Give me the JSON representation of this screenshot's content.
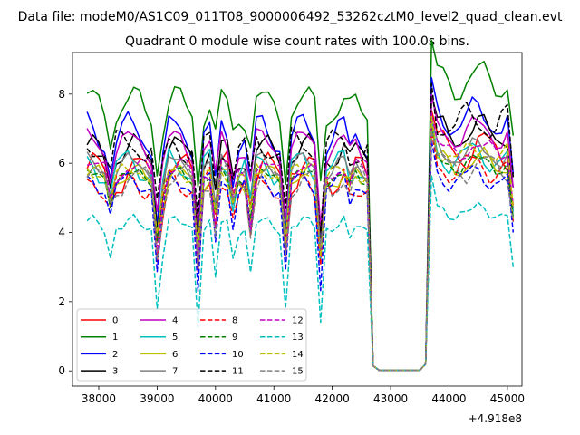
{
  "figure": {
    "suptitle": "Data file: modeM0/AS1C09_011T08_9000006492_53262cztM0_level2_quad_clean.evt",
    "title": "Quadrant 0 module wise count rates with 100.0s bins."
  },
  "chart_data": {
    "type": "line",
    "title": "Quadrant 0 module wise count rates with 100.0s bins.",
    "xlabel": "",
    "ylabel": "",
    "x_offset_label": "+4.918e8",
    "xlim": [
      37550,
      45250
    ],
    "ylim": [
      -0.44,
      9.2
    ],
    "xticks": [
      38000,
      39000,
      40000,
      41000,
      42000,
      43000,
      44000,
      45000
    ],
    "xtick_labels": [
      "38000",
      "39000",
      "40000",
      "41000",
      "42000",
      "43000",
      "44000",
      "45000"
    ],
    "yticks": [
      0,
      2,
      4,
      6,
      8
    ],
    "ytick_labels": [
      "0",
      "2",
      "4",
      "6",
      "8"
    ],
    "grid": false,
    "legend_position": "lower-left",
    "legend_columns": 4,
    "x_start": 37800,
    "x_step": 100,
    "gap": {
      "start_index": 49,
      "end_index": 58,
      "value": 0.02
    },
    "series": [
      {
        "name": "0",
        "color": "#ff0000",
        "dash": "solid",
        "base": 5.7,
        "after_base": 6.4,
        "amp": 0.45,
        "phase": 0.3
      },
      {
        "name": "1",
        "color": "#008000",
        "dash": "solid",
        "base": 7.6,
        "after_base": 8.4,
        "amp": 0.5,
        "phase": 1.1
      },
      {
        "name": "2",
        "color": "#0000ff",
        "dash": "solid",
        "base": 6.8,
        "after_base": 7.3,
        "amp": 0.55,
        "phase": 2.0
      },
      {
        "name": "3",
        "color": "#000000",
        "dash": "solid",
        "base": 6.3,
        "after_base": 6.9,
        "amp": 0.35,
        "phase": 0.7
      },
      {
        "name": "4",
        "color": "#bf00bf",
        "dash": "solid",
        "base": 6.5,
        "after_base": 6.9,
        "amp": 0.35,
        "phase": 1.6
      },
      {
        "name": "5",
        "color": "#00bfbf",
        "dash": "solid",
        "base": 5.9,
        "after_base": 6.2,
        "amp": 0.35,
        "phase": 2.6
      },
      {
        "name": "6",
        "color": "#bfbf00",
        "dash": "solid",
        "base": 5.6,
        "after_base": 6.0,
        "amp": 0.35,
        "phase": 0.2
      },
      {
        "name": "7",
        "color": "#808080",
        "dash": "solid",
        "base": 5.9,
        "after_base": 6.3,
        "amp": 0.3,
        "phase": 1.3
      },
      {
        "name": "8",
        "color": "#ff0000",
        "dash": "dashed",
        "base": 5.4,
        "after_base": 5.9,
        "amp": 0.3,
        "phase": 2.2
      },
      {
        "name": "9",
        "color": "#008000",
        "dash": "dashed",
        "base": 5.6,
        "after_base": 6.0,
        "amp": 0.3,
        "phase": 0.9
      },
      {
        "name": "10",
        "color": "#0000ff",
        "dash": "dashed",
        "base": 5.4,
        "after_base": 5.6,
        "amp": 0.3,
        "phase": 1.9
      },
      {
        "name": "11",
        "color": "#000000",
        "dash": "dashed",
        "base": 6.5,
        "after_base": 7.2,
        "amp": 0.4,
        "phase": 2.8
      },
      {
        "name": "12",
        "color": "#bf00bf",
        "dash": "dashed",
        "base": 5.8,
        "after_base": 6.4,
        "amp": 0.3,
        "phase": 0.5
      },
      {
        "name": "13",
        "color": "#00bfbf",
        "dash": "dashed",
        "base": 4.2,
        "after_base": 4.6,
        "amp": 0.3,
        "phase": 1.5
      },
      {
        "name": "14",
        "color": "#bfbf00",
        "dash": "dashed",
        "base": 5.7,
        "after_base": 6.3,
        "amp": 0.3,
        "phase": 2.4
      },
      {
        "name": "15",
        "color": "#808080",
        "dash": "dashed",
        "base": 5.5,
        "after_base": 5.9,
        "amp": 0.3,
        "phase": 0.1
      }
    ]
  }
}
